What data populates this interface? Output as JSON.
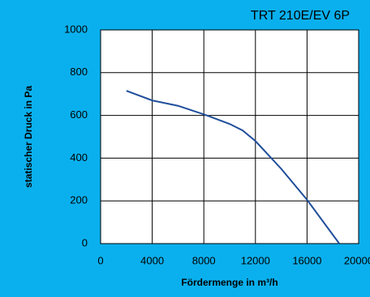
{
  "chart_data": {
    "type": "line",
    "title": "TRT 210E/EV 6P",
    "x_label": "Fördermenge in m³/h",
    "y_label": "statischer Druck in Pa",
    "x": [
      2000,
      4000,
      6000,
      8000,
      10000,
      11000,
      12000,
      14000,
      16000,
      18500
    ],
    "series": [
      {
        "color": "#1f4e9a",
        "values": [
          715,
          670,
          645,
          605,
          560,
          530,
          480,
          350,
          205,
          0
        ]
      }
    ],
    "xlim": [
      0,
      20000
    ],
    "xticks": [
      0,
      4000,
      8000,
      12000,
      16000,
      20000
    ],
    "ylim": [
      0,
      1000
    ],
    "yticks": [
      0,
      200,
      400,
      600,
      800,
      1000
    ],
    "grid": true
  }
}
